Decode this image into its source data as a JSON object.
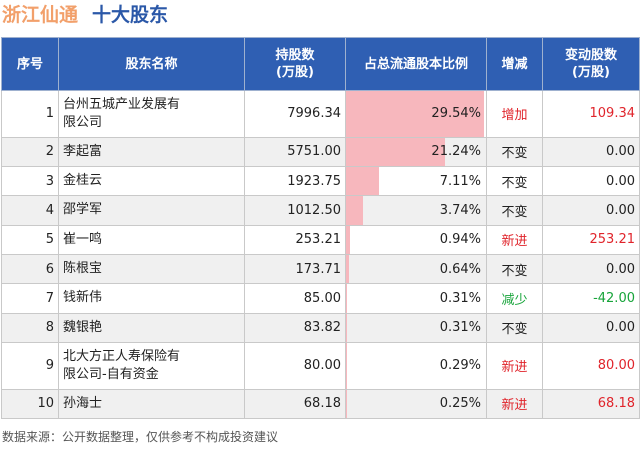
{
  "header": {
    "company": "浙江仙通",
    "subtitle": "十大股东"
  },
  "table": {
    "columns": [
      "序号",
      "股东名称",
      "持股数\n(万股)",
      "占总流通股本比例",
      "增减",
      "变动股数\n(万股)"
    ],
    "rows": [
      {
        "rank": "1",
        "name": "台州五城产业发展有\n限公司",
        "shares": "7996.34",
        "ratio": 29.54,
        "ratio_text": "29.54%",
        "change": "增加",
        "change_type": "up",
        "delta": "109.34"
      },
      {
        "rank": "2",
        "name": "李起富",
        "shares": "5751.00",
        "ratio": 21.24,
        "ratio_text": "21.24%",
        "change": "不变",
        "change_type": "flat",
        "delta": "0.00"
      },
      {
        "rank": "3",
        "name": "金桂云",
        "shares": "1923.75",
        "ratio": 7.11,
        "ratio_text": "7.11%",
        "change": "不变",
        "change_type": "flat",
        "delta": "0.00"
      },
      {
        "rank": "4",
        "name": "邵学军",
        "shares": "1012.50",
        "ratio": 3.74,
        "ratio_text": "3.74%",
        "change": "不变",
        "change_type": "flat",
        "delta": "0.00"
      },
      {
        "rank": "5",
        "name": "崔一鸣",
        "shares": "253.21",
        "ratio": 0.94,
        "ratio_text": "0.94%",
        "change": "新进",
        "change_type": "up",
        "delta": "253.21"
      },
      {
        "rank": "6",
        "name": "陈根宝",
        "shares": "173.71",
        "ratio": 0.64,
        "ratio_text": "0.64%",
        "change": "不变",
        "change_type": "flat",
        "delta": "0.00"
      },
      {
        "rank": "7",
        "name": "钱新伟",
        "shares": "85.00",
        "ratio": 0.31,
        "ratio_text": "0.31%",
        "change": "减少",
        "change_type": "down",
        "delta": "-42.00"
      },
      {
        "rank": "8",
        "name": "魏银艳",
        "shares": "83.82",
        "ratio": 0.31,
        "ratio_text": "0.31%",
        "change": "不变",
        "change_type": "flat",
        "delta": "0.00"
      },
      {
        "rank": "9",
        "name": "北大方正人寿保险有\n限公司-自有资金",
        "shares": "80.00",
        "ratio": 0.29,
        "ratio_text": "0.29%",
        "change": "新进",
        "change_type": "up",
        "delta": "80.00"
      },
      {
        "rank": "10",
        "name": "孙海士",
        "shares": "68.18",
        "ratio": 0.25,
        "ratio_text": "0.25%",
        "change": "新进",
        "change_type": "up",
        "delta": "68.18"
      }
    ]
  },
  "footer": {
    "source": "数据来源：公开数据整理，仅供参考不构成投资建议"
  }
}
